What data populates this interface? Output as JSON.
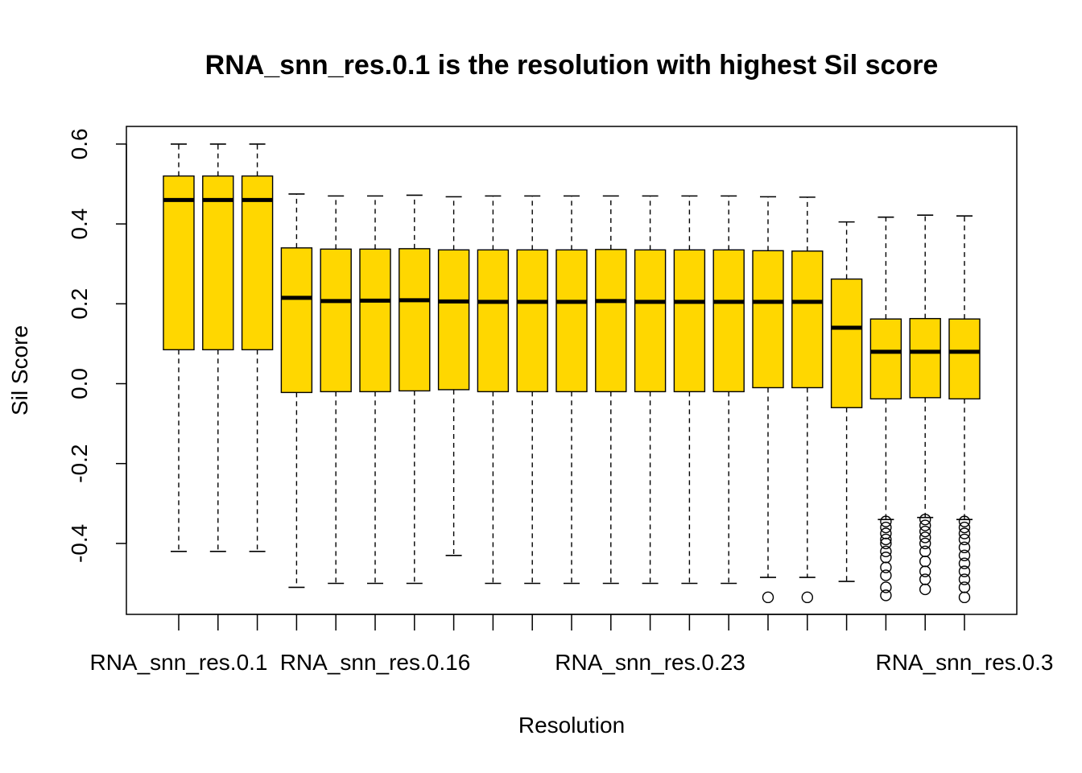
{
  "chart_data": {
    "type": "boxplot",
    "title": "RNA_snn_res.0.1 is the resolution with highest Sil score",
    "xlabel": "Resolution",
    "ylabel": "Sil Score",
    "ylim": [
      -0.58,
      0.64
    ],
    "yticks": [
      -0.4,
      -0.2,
      0.0,
      0.2,
      0.4,
      0.6
    ],
    "ytick_labels": [
      "-0.4",
      "-0.2",
      "0.0",
      "0.2",
      "0.4",
      "0.6"
    ],
    "xtick_labels": [
      "RNA_snn_res.0.1",
      "",
      "",
      "",
      "",
      "RNA_snn_res.0.16",
      "",
      "",
      "",
      "",
      "",
      "",
      "RNA_snn_res.0.23",
      "",
      "",
      "",
      "",
      "",
      "",
      "",
      "RNA_snn_res.0.3"
    ],
    "colors": {
      "box_fill": "#FFD700",
      "stroke": "#000000"
    },
    "series": [
      {
        "whisker_low": -0.42,
        "q1": 0.085,
        "median": 0.46,
        "q3": 0.52,
        "whisker_high": 0.6,
        "outliers": []
      },
      {
        "whisker_low": -0.42,
        "q1": 0.085,
        "median": 0.46,
        "q3": 0.52,
        "whisker_high": 0.6,
        "outliers": []
      },
      {
        "whisker_low": -0.42,
        "q1": 0.085,
        "median": 0.46,
        "q3": 0.52,
        "whisker_high": 0.6,
        "outliers": []
      },
      {
        "whisker_low": -0.51,
        "q1": -0.022,
        "median": 0.215,
        "q3": 0.34,
        "whisker_high": 0.475,
        "outliers": []
      },
      {
        "whisker_low": -0.5,
        "q1": -0.02,
        "median": 0.207,
        "q3": 0.337,
        "whisker_high": 0.47,
        "outliers": []
      },
      {
        "whisker_low": -0.5,
        "q1": -0.02,
        "median": 0.208,
        "q3": 0.337,
        "whisker_high": 0.47,
        "outliers": []
      },
      {
        "whisker_low": -0.5,
        "q1": -0.018,
        "median": 0.209,
        "q3": 0.338,
        "whisker_high": 0.472,
        "outliers": []
      },
      {
        "whisker_low": -0.43,
        "q1": -0.015,
        "median": 0.206,
        "q3": 0.335,
        "whisker_high": 0.468,
        "outliers": []
      },
      {
        "whisker_low": -0.5,
        "q1": -0.02,
        "median": 0.205,
        "q3": 0.335,
        "whisker_high": 0.47,
        "outliers": []
      },
      {
        "whisker_low": -0.5,
        "q1": -0.02,
        "median": 0.205,
        "q3": 0.335,
        "whisker_high": 0.47,
        "outliers": []
      },
      {
        "whisker_low": -0.5,
        "q1": -0.02,
        "median": 0.205,
        "q3": 0.335,
        "whisker_high": 0.47,
        "outliers": []
      },
      {
        "whisker_low": -0.5,
        "q1": -0.02,
        "median": 0.207,
        "q3": 0.336,
        "whisker_high": 0.47,
        "outliers": []
      },
      {
        "whisker_low": -0.5,
        "q1": -0.02,
        "median": 0.205,
        "q3": 0.335,
        "whisker_high": 0.47,
        "outliers": []
      },
      {
        "whisker_low": -0.5,
        "q1": -0.02,
        "median": 0.205,
        "q3": 0.335,
        "whisker_high": 0.47,
        "outliers": []
      },
      {
        "whisker_low": -0.5,
        "q1": -0.02,
        "median": 0.205,
        "q3": 0.335,
        "whisker_high": 0.47,
        "outliers": []
      },
      {
        "whisker_low": -0.485,
        "q1": -0.01,
        "median": 0.205,
        "q3": 0.333,
        "whisker_high": 0.468,
        "outliers": [
          -0.535
        ]
      },
      {
        "whisker_low": -0.485,
        "q1": -0.01,
        "median": 0.205,
        "q3": 0.332,
        "whisker_high": 0.467,
        "outliers": [
          -0.535
        ]
      },
      {
        "whisker_low": -0.495,
        "q1": -0.06,
        "median": 0.14,
        "q3": 0.262,
        "whisker_high": 0.405,
        "outliers": []
      },
      {
        "whisker_low": -0.34,
        "q1": -0.038,
        "median": 0.08,
        "q3": 0.162,
        "whisker_high": 0.417,
        "outliers": [
          -0.345,
          -0.36,
          -0.375,
          -0.39,
          -0.4,
          -0.42,
          -0.435,
          -0.46,
          -0.48,
          -0.51,
          -0.53
        ]
      },
      {
        "whisker_low": -0.335,
        "q1": -0.035,
        "median": 0.08,
        "q3": 0.163,
        "whisker_high": 0.422,
        "outliers": [
          -0.34,
          -0.355,
          -0.37,
          -0.385,
          -0.4,
          -0.42,
          -0.445,
          -0.47,
          -0.49,
          -0.515
        ]
      },
      {
        "whisker_low": -0.34,
        "q1": -0.038,
        "median": 0.08,
        "q3": 0.162,
        "whisker_high": 0.42,
        "outliers": [
          -0.345,
          -0.36,
          -0.375,
          -0.39,
          -0.41,
          -0.43,
          -0.45,
          -0.47,
          -0.49,
          -0.51,
          -0.535
        ]
      }
    ]
  }
}
